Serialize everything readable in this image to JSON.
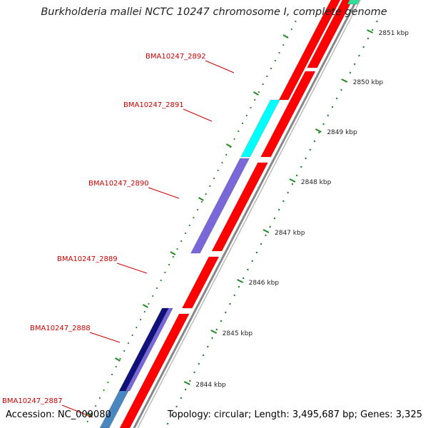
{
  "title": "Burkholderia mallei NCTC 10247 chromosome I, complete genome",
  "footer": {
    "accession": "Accession: NC_009080",
    "summary": "Topology: circular; Length: 3,495,687 bp; Genes: 3,325"
  },
  "kbp_ticks": [
    "2851 kbp",
    "2850 kbp",
    "2849 kbp",
    "2848 kbp",
    "2847 kbp",
    "2846 kbp",
    "2845 kbp",
    "2844 kbp"
  ],
  "gene_labels": [
    "BMA10247_2892",
    "BMA10247_2891",
    "BMA10247_2890",
    "BMA10247_2889",
    "BMA10247_2888",
    "BMA10247_2887"
  ],
  "colors": {
    "forward_gene": "#ff0000",
    "cyan_gene": "#00ffff",
    "purple_gene": "#7b68d8",
    "navy_gene": "#10107a",
    "steel_gene": "#4a86c0",
    "green_gene": "#33dd99",
    "tick": "#228822",
    "label": "#cc0000",
    "backbone": "#888888"
  }
}
